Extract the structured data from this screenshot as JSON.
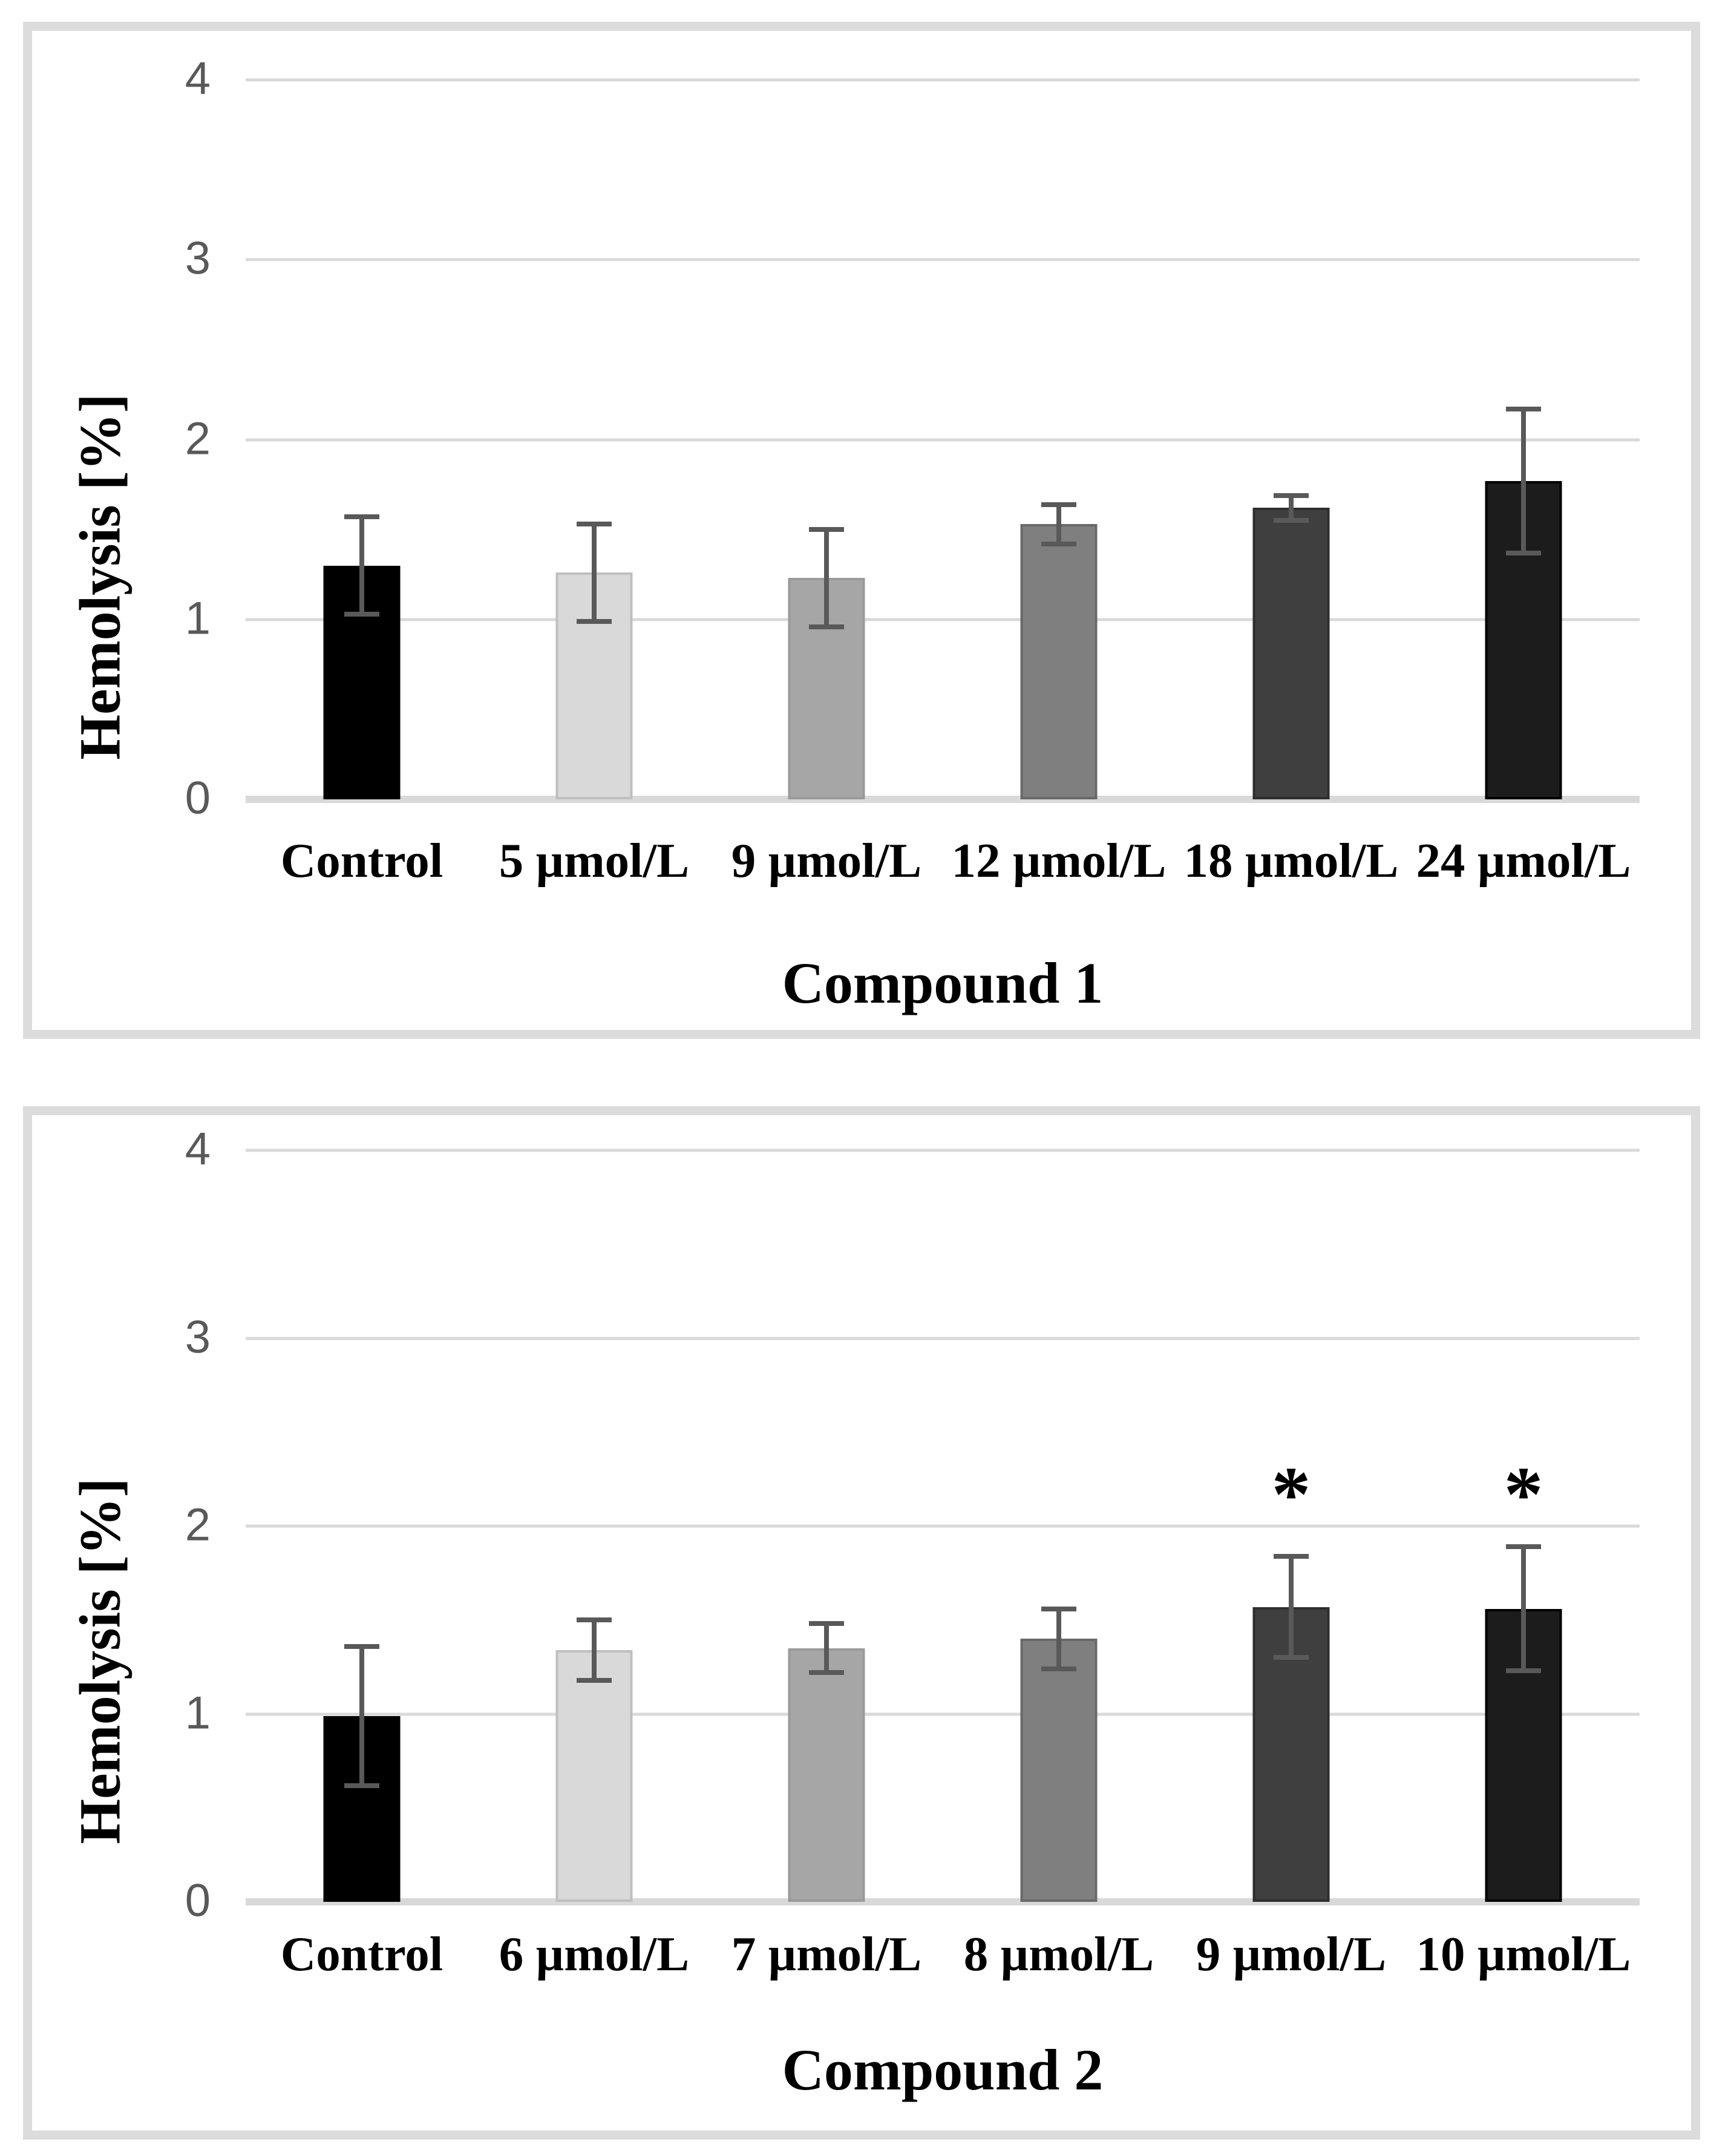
{
  "page": {
    "background": "#ffffff"
  },
  "chart_data": [
    {
      "type": "bar",
      "title": "Compound 1",
      "ylabel": "Hemolysis [%]",
      "ylim": [
        0,
        4
      ],
      "yticks": [
        0,
        1,
        2,
        3,
        4
      ],
      "grid": true,
      "legend": "none",
      "categories": [
        "Control",
        "5 µmol/L",
        "9 µmol/L",
        "12 µmol/L",
        "18 µmol/L",
        "24 µmol/L"
      ],
      "values": [
        1.3,
        1.26,
        1.23,
        1.53,
        1.62,
        1.77
      ],
      "errors": [
        0.27,
        0.27,
        0.27,
        0.11,
        0.07,
        0.4
      ],
      "significance": [
        "",
        "",
        "",
        "",
        "",
        ""
      ],
      "significance_y": 2.0,
      "bar_colors": [
        "#000000",
        "#d9d9d9",
        "#a6a6a6",
        "#7f7f7f",
        "#3f3f3f",
        "#1c1c1c"
      ],
      "bar_edge_colors": [
        "#000000",
        "#bfbfbf",
        "#9a9a9a",
        "#696969",
        "#2e2e2e",
        "#000000"
      ],
      "gridline_color": "#d9d9d9",
      "error_color": "#595959",
      "tick_color": "#595959"
    },
    {
      "type": "bar",
      "title": "Compound 2",
      "ylabel": "Hemolysis [%]",
      "ylim": [
        0,
        4
      ],
      "yticks": [
        0,
        1,
        2,
        3,
        4
      ],
      "grid": true,
      "legend": "none",
      "categories": [
        "Control",
        "6 µmol/L",
        "7 µmol/L",
        "8 µmol/L",
        "9 µmol/L",
        "10 µmol/L"
      ],
      "values": [
        0.99,
        1.34,
        1.35,
        1.4,
        1.57,
        1.56
      ],
      "errors": [
        0.37,
        0.16,
        0.13,
        0.16,
        0.27,
        0.33
      ],
      "significance": [
        "",
        "",
        "",
        "",
        "*",
        "*"
      ],
      "significance_y": 2.0,
      "bar_colors": [
        "#000000",
        "#d9d9d9",
        "#a6a6a6",
        "#7f7f7f",
        "#3f3f3f",
        "#1c1c1c"
      ],
      "bar_edge_colors": [
        "#000000",
        "#bfbfbf",
        "#9a9a9a",
        "#696969",
        "#2e2e2e",
        "#000000"
      ],
      "gridline_color": "#d9d9d9",
      "error_color": "#595959",
      "tick_color": "#595959"
    }
  ]
}
